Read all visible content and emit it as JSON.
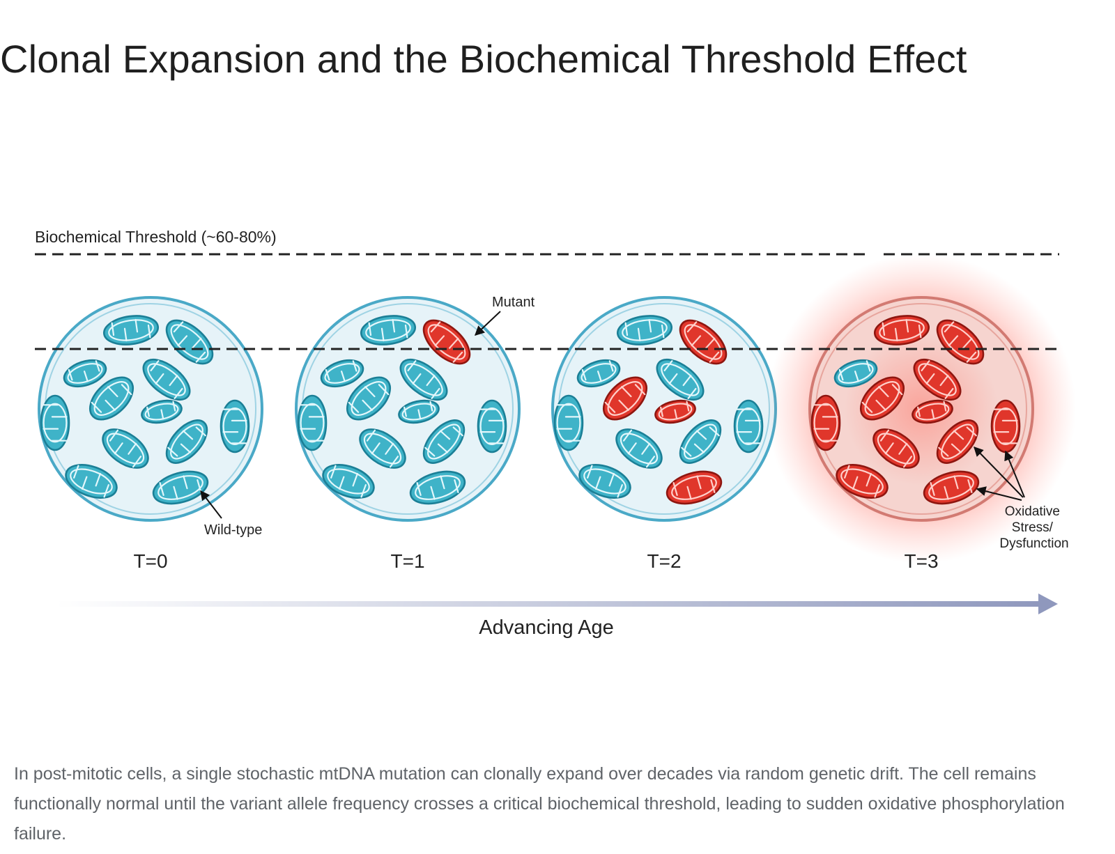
{
  "title": "Clonal Expansion and the Biochemical Threshold Effect",
  "diagram": {
    "threshold_label": "Biochemical Threshold (~60-80%)",
    "stages": [
      {
        "label": "T=0",
        "mutant_fraction": 0.0
      },
      {
        "label": "T=1",
        "mutant_fraction": 0.08
      },
      {
        "label": "T=2",
        "mutant_fraction": 0.33
      },
      {
        "label": "T=3",
        "mutant_fraction": 0.92
      }
    ],
    "annotations": {
      "wild_type": "Wild-type",
      "mutant": "Mutant",
      "oxidative_stress": [
        "Oxidative",
        "Stress/",
        "Dysfunction"
      ]
    },
    "axis_label": "Advancing Age",
    "colors": {
      "wild_type_fill": "#3fb3c8",
      "wild_type_stroke": "#1b7f96",
      "mutant_fill": "#e0362b",
      "mutant_stroke": "#8e1610",
      "cell_fill": "#e6f3f8",
      "cell_stroke": "#4aa9c7",
      "stressed_cell_fill": "#f6d4cf",
      "stressed_cell_stroke": "#d27a72",
      "glow": "#ff5a4a",
      "arrow": "#9aa3c4"
    }
  },
  "caption": "In post-mitotic cells, a single stochastic mtDNA mutation can clonally expand over decades via random genetic drift. The cell remains functionally normal until the variant allele frequency crosses a critical biochemical threshold, leading to sudden oxidative phosphorylation failure."
}
